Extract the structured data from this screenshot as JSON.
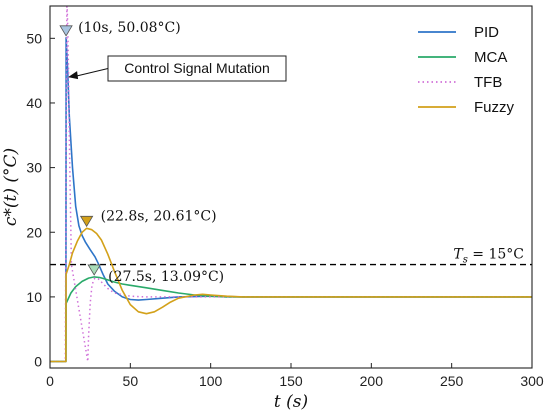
{
  "chart_data": {
    "type": "line",
    "xlabel": "t (s)",
    "ylabel": "c*(t) (°C)",
    "xlim": [
      0,
      300
    ],
    "ylim": [
      -1,
      55
    ],
    "xticks": [
      0,
      50,
      100,
      150,
      200,
      250,
      300
    ],
    "yticks": [
      0,
      10,
      20,
      30,
      40,
      50
    ],
    "legend_position": "top-right",
    "series": [
      {
        "name": "PID",
        "color": "#2e75c8",
        "style": "solid",
        "x": [
          0,
          9.9,
          10,
          11,
          12,
          14,
          16,
          18,
          20,
          22,
          25,
          28,
          30,
          33,
          36,
          40,
          45,
          50,
          55,
          60,
          70,
          80,
          100,
          120,
          150,
          300
        ],
        "y": [
          0,
          0,
          50.08,
          45,
          38,
          30,
          24,
          21,
          19.5,
          18.5,
          17.3,
          16.2,
          15.2,
          13.5,
          12,
          10.9,
          10,
          9.6,
          9.5,
          9.6,
          9.8,
          10,
          10.1,
          10,
          10,
          10
        ]
      },
      {
        "name": "MCA",
        "color": "#2aaa6a",
        "style": "solid",
        "x": [
          0,
          9.9,
          10,
          13,
          16,
          20,
          24,
          27.5,
          31,
          35,
          40,
          45,
          50,
          60,
          70,
          80,
          90,
          100,
          110,
          120,
          150,
          300
        ],
        "y": [
          0,
          0,
          9,
          10.6,
          11.6,
          12.4,
          12.9,
          13.09,
          13,
          12.7,
          12.3,
          12,
          11.8,
          11.4,
          11,
          10.6,
          10.3,
          10.1,
          10,
          10,
          10,
          10
        ]
      },
      {
        "name": "TFB",
        "color": "#d070d8",
        "style": "dotted",
        "x": [
          0,
          9.5,
          10.5,
          11,
          11.5,
          12,
          12.5,
          13,
          13.3,
          23.5,
          24,
          25,
          26,
          27,
          28,
          30,
          32,
          36,
          40,
          50,
          60,
          80,
          100,
          300
        ],
        "y": [
          0,
          0,
          56,
          52,
          45,
          35,
          27,
          20,
          15,
          0,
          4,
          9,
          11.5,
          12.6,
          12.9,
          12.8,
          12.3,
          11.3,
          10.6,
          10.1,
          10,
          10,
          10,
          10
        ]
      },
      {
        "name": "Fuzzy",
        "color": "#d3a11a",
        "style": "solid",
        "x": [
          0,
          9.9,
          10,
          12,
          14,
          17,
          20,
          22.8,
          26,
          29,
          32,
          36,
          40,
          45,
          50,
          55,
          60,
          65,
          70,
          75,
          80,
          90,
          95,
          100,
          110,
          120,
          130,
          150,
          300
        ],
        "y": [
          0,
          0,
          13.5,
          15,
          16.8,
          18.6,
          20,
          20.61,
          20.4,
          19.8,
          18.8,
          16.6,
          14,
          11,
          8.8,
          7.7,
          7.4,
          7.7,
          8.4,
          9.2,
          9.8,
          10.3,
          10.4,
          10.3,
          10.1,
          10,
          10,
          10,
          10
        ]
      }
    ],
    "reference_line": {
      "label": "T_s = 15°C",
      "label_main": "T",
      "label_sub": "s",
      "label_rest": " = 15°C",
      "y": 15,
      "color": "#000000",
      "style": "dashed"
    },
    "markers": [
      {
        "x": 10,
        "y": 50.08,
        "label": "(10s, 50.08°C)",
        "color": "#a8c4e0"
      },
      {
        "x": 22.8,
        "y": 20.61,
        "label": "(22.8s, 20.61°C)",
        "color": "#d3a11a"
      },
      {
        "x": 27.5,
        "y": 13.09,
        "label": "(27.5s, 13.09°C)",
        "color": "#a8dcb8"
      }
    ],
    "annotation_box": {
      "text": "Control Signal Mutation",
      "points_to_x": 10,
      "points_to_y": 44
    }
  }
}
